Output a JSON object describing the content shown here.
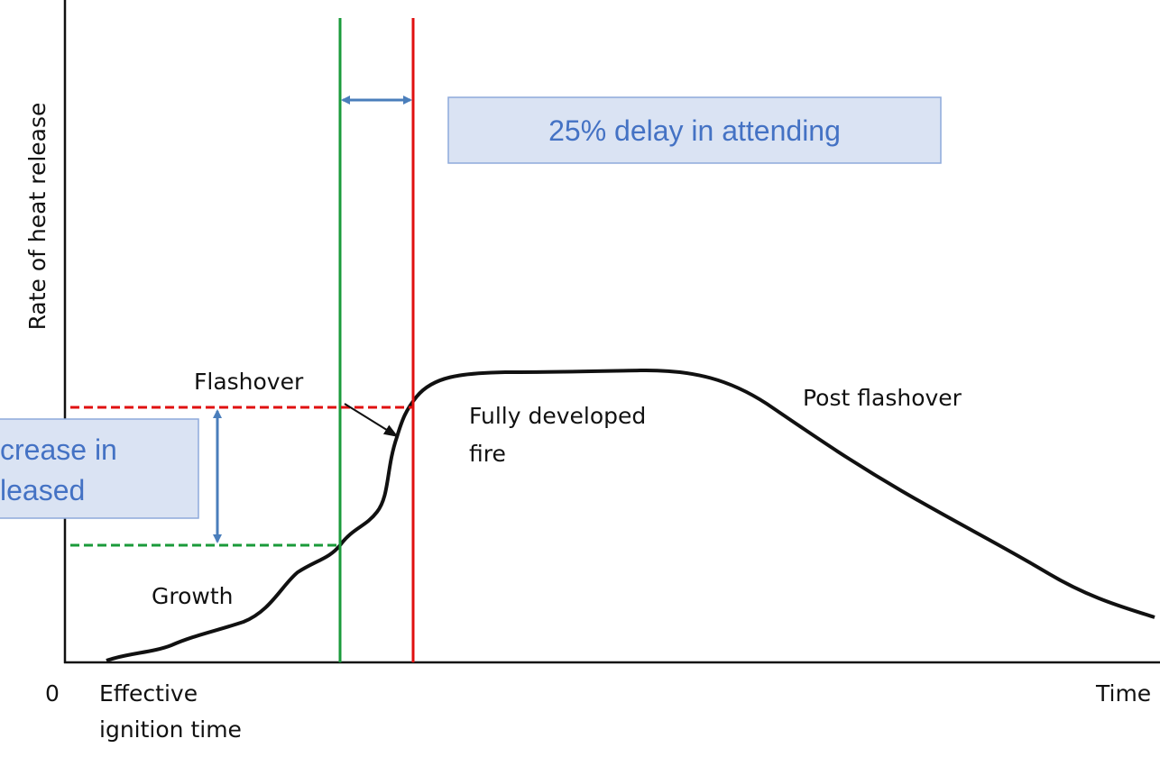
{
  "axes": {
    "y_label": "Rate of heat release",
    "x_label": "Time",
    "origin": "0",
    "x_start": [
      "Effective",
      "ignition time"
    ]
  },
  "labels": {
    "growth": "Growth",
    "flashover": "Flashover",
    "fully_developed": [
      "Fully developed",
      "fire"
    ],
    "post_flashover": "Post flashover"
  },
  "callouts": {
    "delay": "25% delay in attending",
    "increase": [
      "crease in",
      "leased"
    ]
  }
}
